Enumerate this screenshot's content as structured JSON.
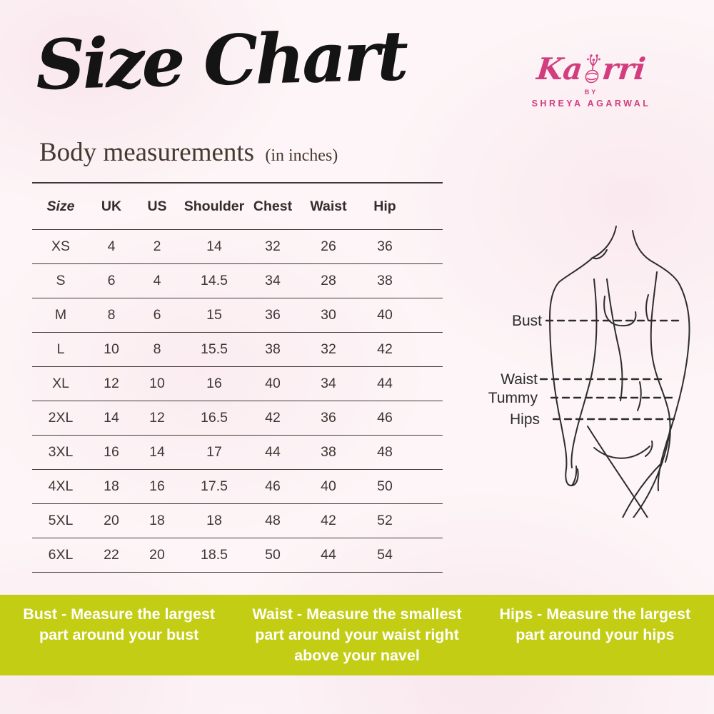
{
  "header": {
    "title": "Size Chart",
    "subtitle": "Body measurements",
    "subtitle_note": "(in inches)"
  },
  "logo": {
    "brand": "Kaorri",
    "brand_left": "Ka",
    "brand_right": "rri",
    "by": "BY",
    "designer": "SHREYA AGARWAL",
    "color": "#d23d7e"
  },
  "size_table": {
    "columns": [
      "Size",
      "UK",
      "US",
      "Shoulder",
      "Chest",
      "Waist",
      "Hip"
    ],
    "rows": [
      [
        "XS",
        "4",
        "2",
        "14",
        "32",
        "26",
        "36"
      ],
      [
        "S",
        "6",
        "4",
        "14.5",
        "34",
        "28",
        "38"
      ],
      [
        "M",
        "8",
        "6",
        "15",
        "36",
        "30",
        "40"
      ],
      [
        "L",
        "10",
        "8",
        "15.5",
        "38",
        "32",
        "42"
      ],
      [
        "XL",
        "12",
        "10",
        "16",
        "40",
        "34",
        "44"
      ],
      [
        "2XL",
        "14",
        "12",
        "16.5",
        "42",
        "36",
        "46"
      ],
      [
        "3XL",
        "16",
        "14",
        "17",
        "44",
        "38",
        "48"
      ],
      [
        "4XL",
        "18",
        "16",
        "17.5",
        "46",
        "40",
        "50"
      ],
      [
        "5XL",
        "20",
        "18",
        "18",
        "48",
        "42",
        "52"
      ],
      [
        "6XL",
        "22",
        "20",
        "18.5",
        "50",
        "44",
        "54"
      ]
    ]
  },
  "figure": {
    "labels": {
      "bust": "Bust",
      "waist": "Waist",
      "tummy": "Tummy",
      "hips": "Hips"
    }
  },
  "footer": {
    "background": "#c3cd14",
    "items": [
      {
        "term": "Bust -",
        "description": "Measure the largest part around your bust"
      },
      {
        "term": "Waist -",
        "description": "Measure the smallest part around your waist right above your navel"
      },
      {
        "term": "Hips -",
        "description": "Measure the largest part around your hips"
      }
    ]
  },
  "colors": {
    "background": "#fdf5f7",
    "ink": "#2f2a28",
    "accent_pink": "#d23d7e",
    "banner_green": "#c3cd14"
  }
}
